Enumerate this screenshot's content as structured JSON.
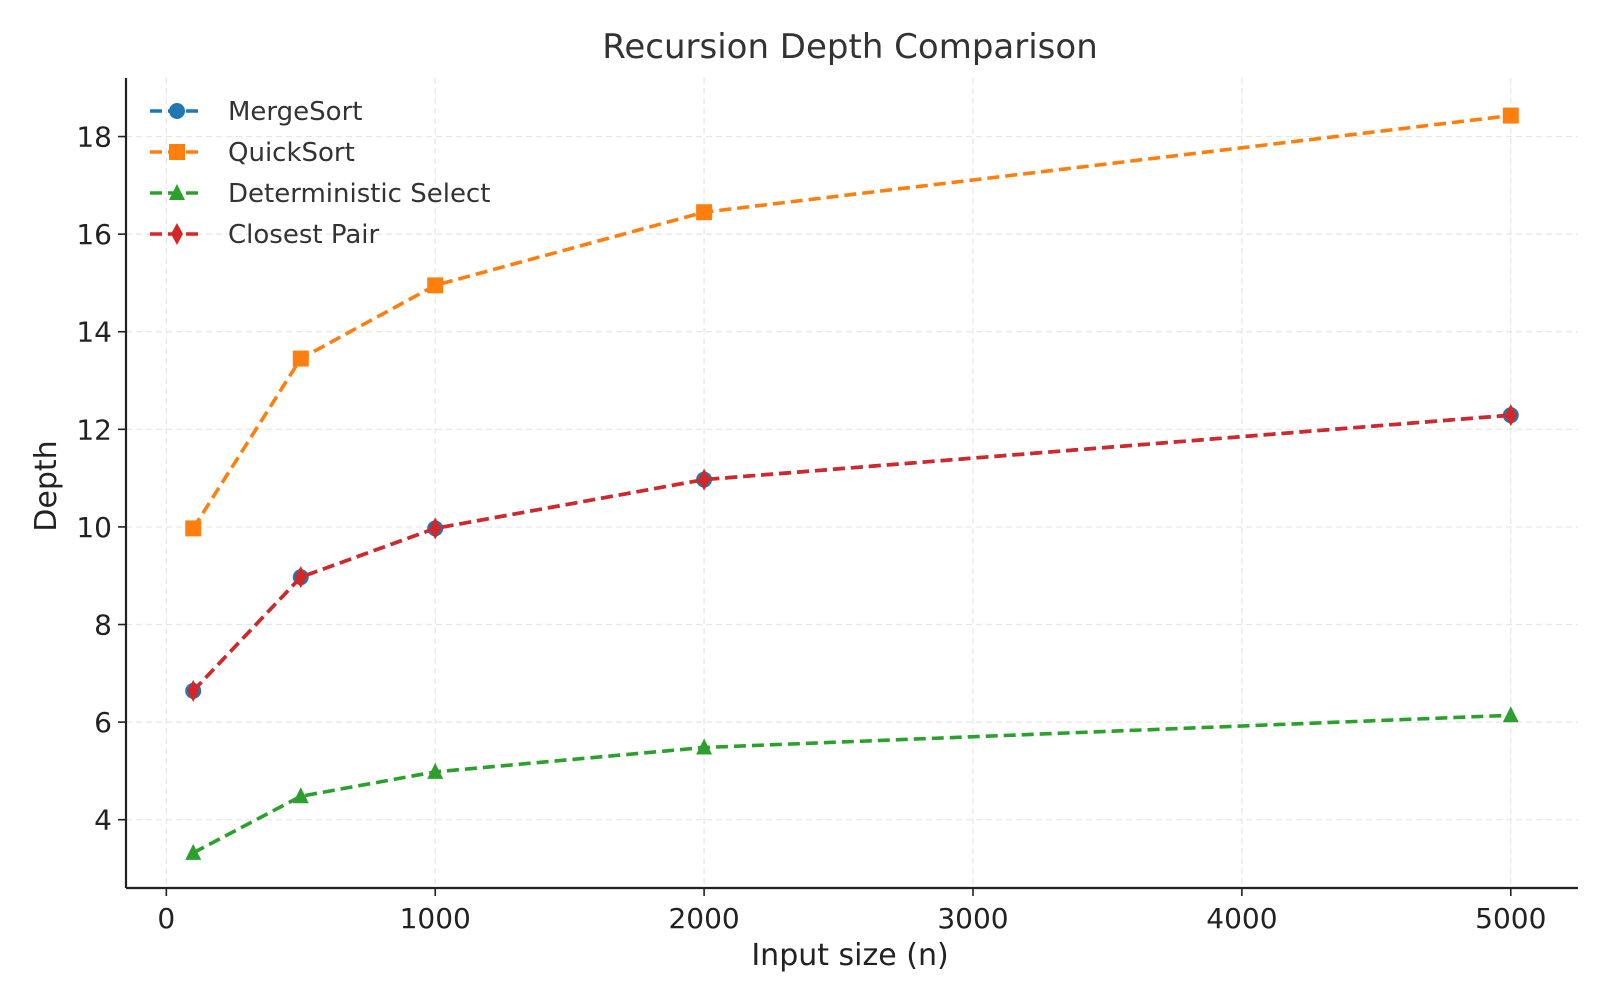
{
  "chart_data": {
    "type": "line",
    "title": "Recursion Depth Comparison",
    "xlabel": "Input size (n)",
    "ylabel": "Depth",
    "xlim": [
      -150,
      5250
    ],
    "ylim": [
      2.6,
      19.2
    ],
    "x_ticks": [
      0,
      1000,
      2000,
      3000,
      4000,
      5000
    ],
    "y_ticks": [
      4,
      6,
      8,
      10,
      12,
      14,
      16,
      18
    ],
    "grid": true,
    "line_style": "dashed",
    "legend_position": "top-left",
    "x": [
      100,
      500,
      1000,
      2000,
      5000
    ],
    "series": [
      {
        "name": "MergeSort",
        "color": "#1f77b4",
        "marker": "circle",
        "values": [
          6.64,
          8.97,
          9.97,
          10.97,
          12.29
        ]
      },
      {
        "name": "QuickSort",
        "color": "#ff7f0e",
        "marker": "square",
        "values": [
          9.97,
          13.45,
          14.95,
          16.45,
          18.43
        ]
      },
      {
        "name": "Deterministic Select",
        "color": "#2ca02c",
        "marker": "triangle",
        "values": [
          3.32,
          4.48,
          4.98,
          5.48,
          6.14
        ]
      },
      {
        "name": "Closest Pair",
        "color": "#d62728",
        "marker": "diamond",
        "values": [
          6.64,
          8.97,
          9.97,
          10.97,
          12.29
        ]
      }
    ]
  }
}
